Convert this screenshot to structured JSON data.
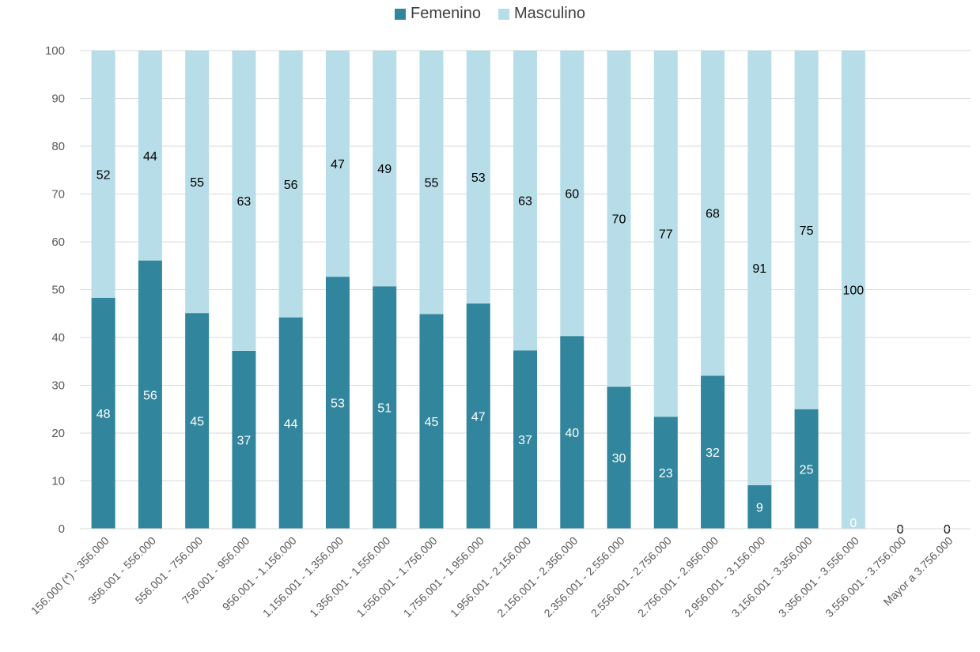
{
  "chart_data": {
    "type": "bar",
    "stacked": true,
    "categories": [
      "156.000 (*) - 356.000",
      "356.001 - 556.000",
      "556.001 - 756.000",
      "756.001 - 956.000",
      "956.001 - 1.156.000",
      "1.156.001 - 1.356.000",
      "1.356.001 - 1.556.000",
      "1.556.001 - 1.756.000",
      "1.756.001 - 1.956.000",
      "1.956.001 - 2.156.000",
      "2.156.001 - 2.356.000",
      "2.356.001 - 2.556.000",
      "2.556.001 - 2.756.000",
      "2.756.001 - 2.956.000",
      "2.956.001 - 3.156.000",
      "3.156.001 - 3.356.000",
      "3.356.001 - 3.556.000",
      "3.556.001 - 3.756.000",
      "Mayor a 3.756.000"
    ],
    "series": [
      {
        "name": "Femenino",
        "color": "#31859c",
        "values": [
          48.3,
          56.1,
          45.1,
          37.2,
          44.2,
          52.7,
          50.7,
          44.9,
          47.1,
          37.3,
          40.3,
          29.7,
          23.4,
          32.0,
          9.1,
          25.0,
          0,
          0,
          0
        ],
        "labels": [
          "48",
          "56",
          "45",
          "37",
          "44",
          "53",
          "51",
          "45",
          "47",
          "37",
          "40",
          "30",
          "23",
          "32",
          "9",
          "25",
          "0",
          "",
          ""
        ]
      },
      {
        "name": "Masculino",
        "color": "#b7dde8",
        "values": [
          51.7,
          43.9,
          54.9,
          62.8,
          55.8,
          47.3,
          49.3,
          55.1,
          52.9,
          62.7,
          59.7,
          70.3,
          76.6,
          68.0,
          90.9,
          75.0,
          100,
          0,
          0
        ],
        "labels": [
          "52",
          "44",
          "55",
          "63",
          "56",
          "47",
          "49",
          "55",
          "53",
          "63",
          "60",
          "70",
          "77",
          "68",
          "91",
          "75",
          "100",
          "0",
          "0"
        ]
      }
    ],
    "ylim": [
      0,
      100
    ],
    "yticks": [
      "0",
      "10",
      "20",
      "30",
      "40",
      "50",
      "60",
      "70",
      "80",
      "90",
      "100"
    ],
    "grid": true,
    "legend_position": "top"
  }
}
